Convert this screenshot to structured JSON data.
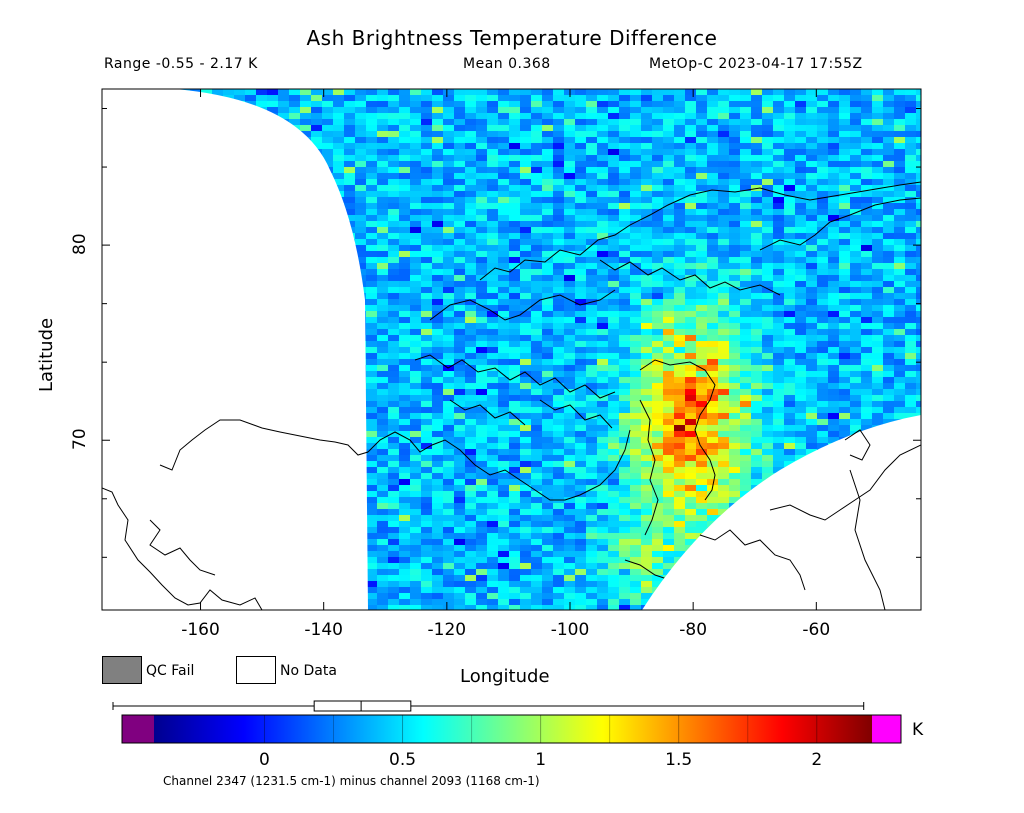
{
  "header": {
    "title": "Ash Brightness Temperature Difference",
    "range": "Range -0.55 - 2.17 K",
    "mean": "Mean 0.368",
    "satellite": "MetOp-C 2023-04-17 17:55Z"
  },
  "axes": {
    "xlabel": "Longitude",
    "ylabel": "Latitude",
    "xticks": [
      "-160",
      "-140",
      "-120",
      "-100",
      "-80",
      "-60"
    ],
    "xtick_values": [
      -160,
      -140,
      -120,
      -100,
      -80,
      -60
    ],
    "yticks": [
      "80",
      "70"
    ],
    "ytick_values": [
      80,
      70
    ],
    "xlim": [
      -176,
      -43
    ],
    "ylim": [
      61.3,
      88
    ]
  },
  "legend": {
    "qc_fail": "QC Fail",
    "no_data": "No Data",
    "qc_fail_color": "#808080",
    "no_data_color": "#ffffff"
  },
  "colorbar": {
    "unit": "K",
    "ticks": [
      "0",
      "0.5",
      "1",
      "1.5",
      "2"
    ],
    "tick_values": [
      0,
      0.5,
      1,
      1.5,
      2
    ],
    "range": [
      -0.4,
      2.2
    ],
    "under_color": "#800080",
    "over_color": "#ff00ff",
    "boxplot": {
      "min": -0.55,
      "q1": 0.18,
      "median": 0.35,
      "q3": 0.53,
      "max": 2.17
    }
  },
  "caption": "Channel 2347 (1231.5 cm-1) minus channel 2093 (1168 cm-1)"
}
